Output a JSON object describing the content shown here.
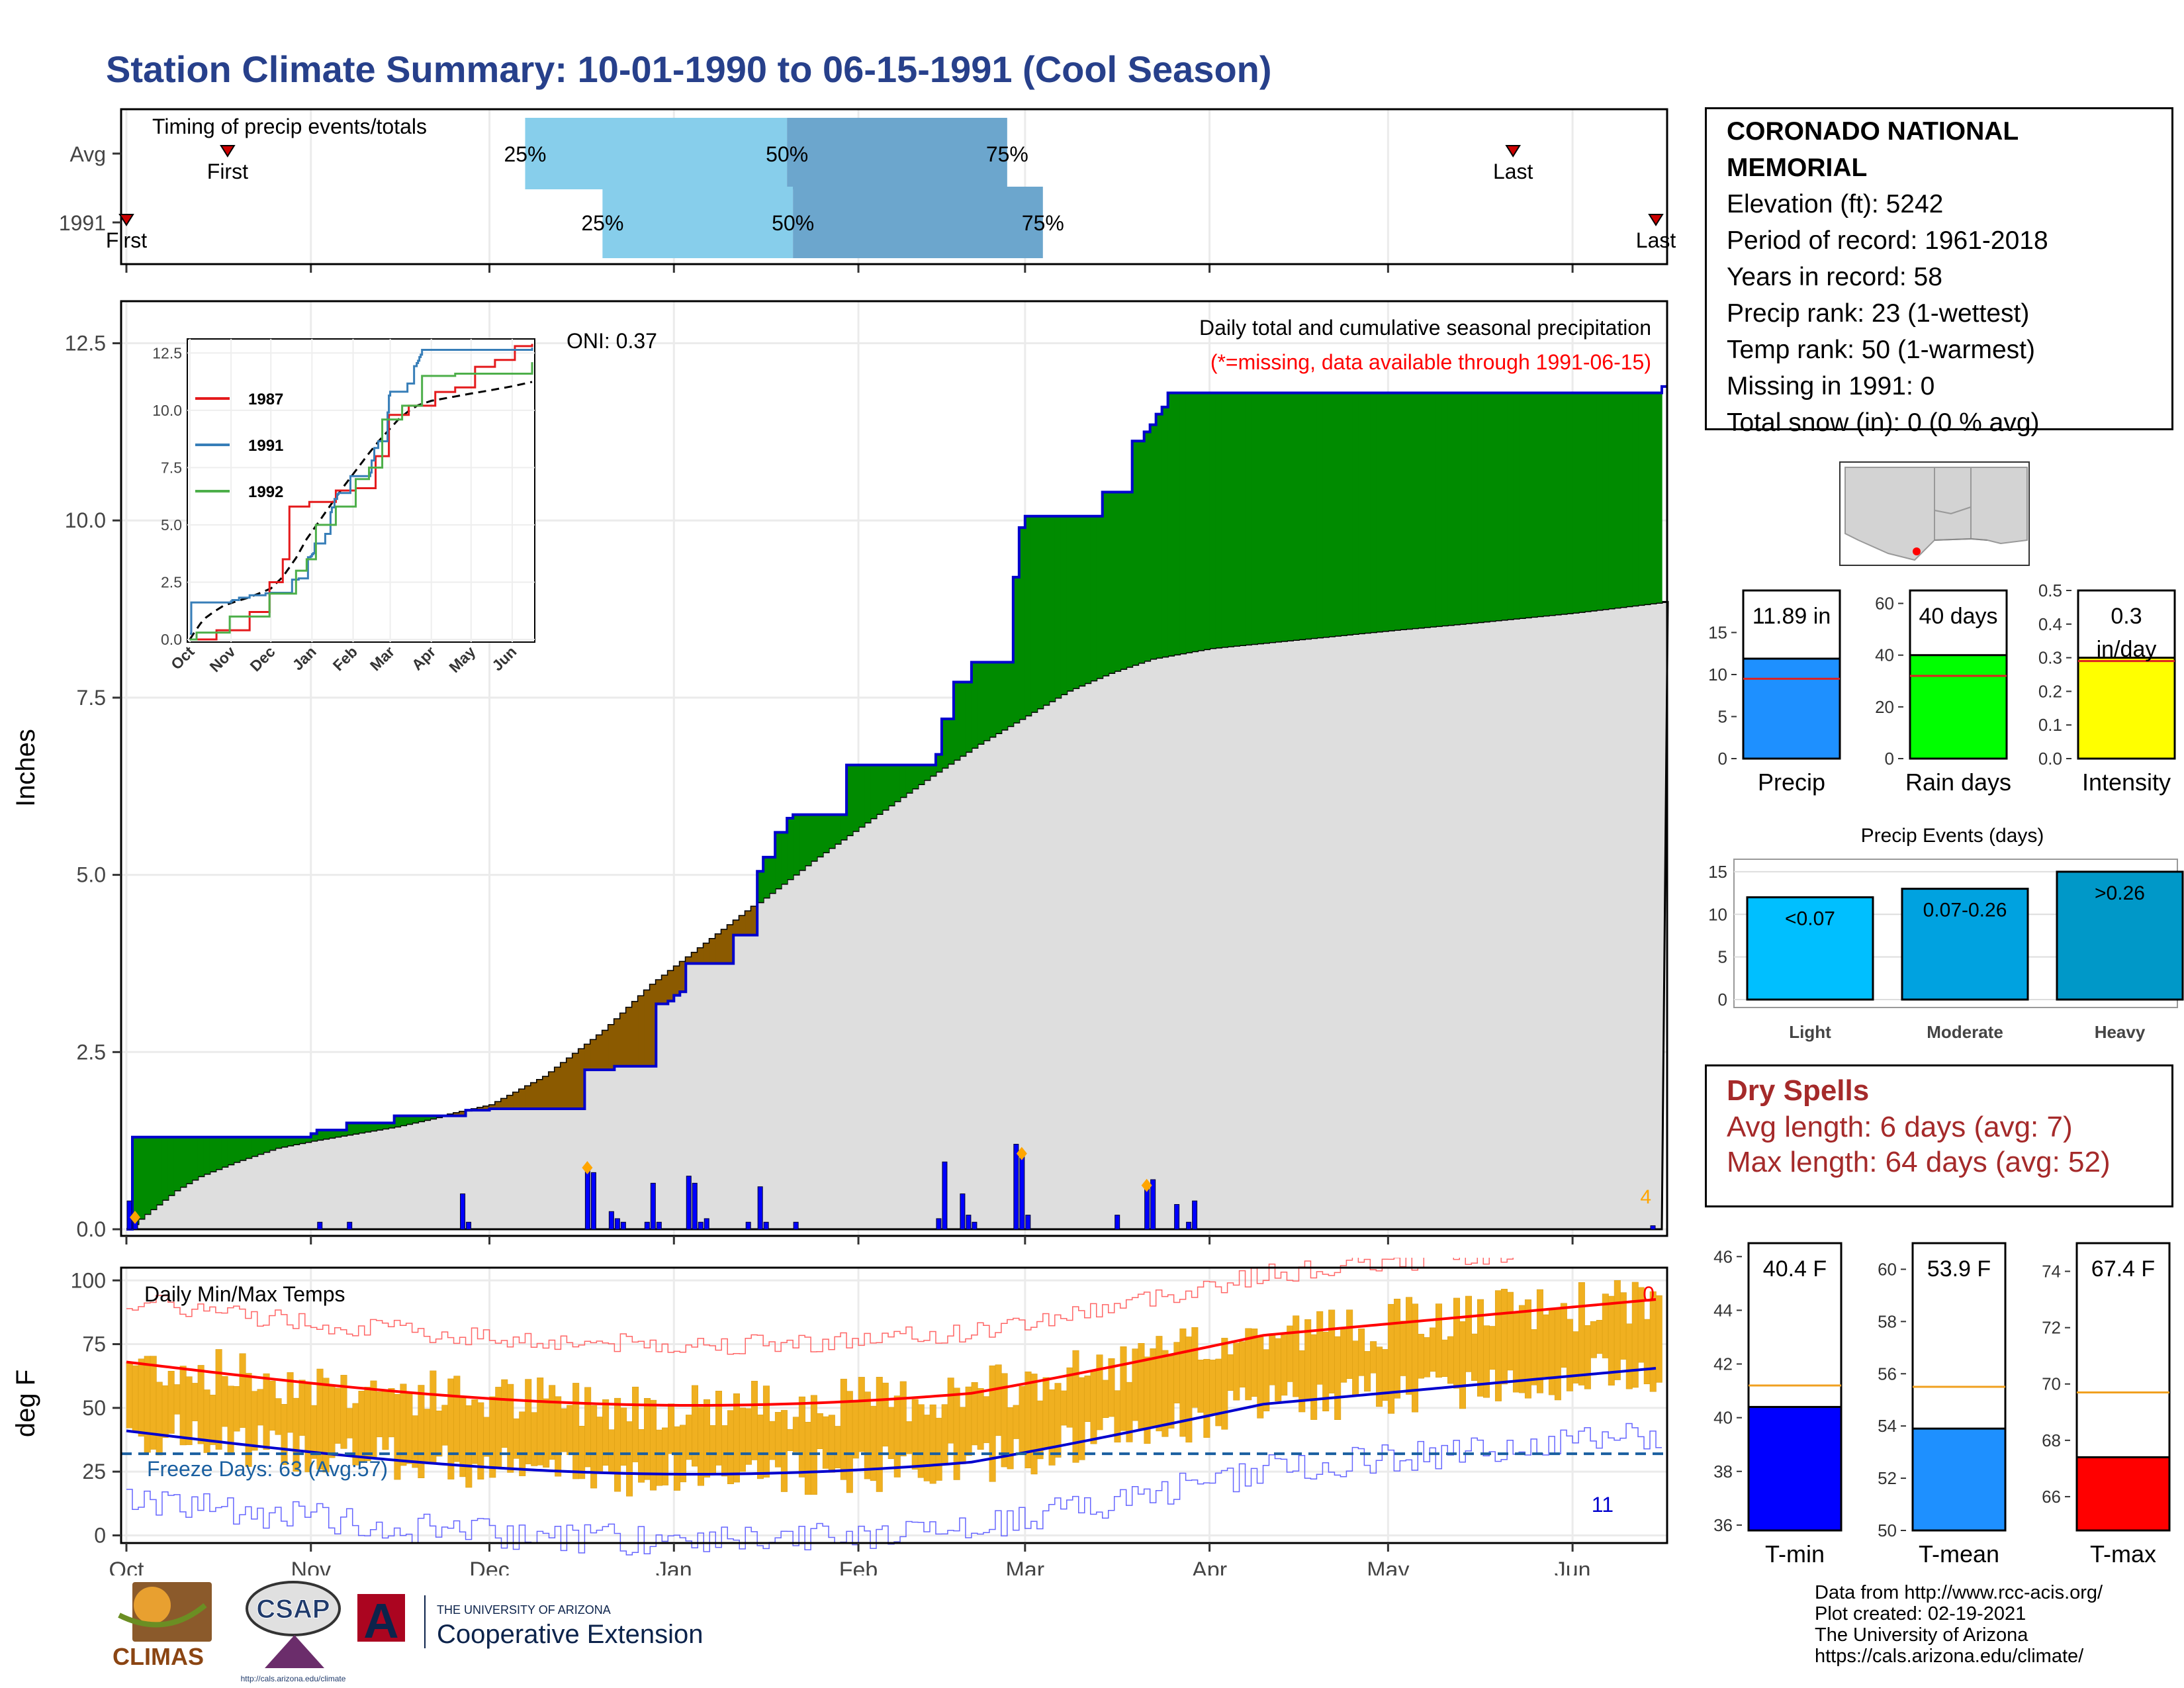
{
  "title": "Station Climate Summary: 10-01-1990 to 06-15-1991 (Cool Season)",
  "colors": {
    "title": "#27408b",
    "cum_obs": "#0000cd",
    "above": "#008b00",
    "below": "#8b5a00",
    "avg_fill": "#dedede",
    "daily_bar": "#0000ff",
    "tmax": "#ff0000",
    "tmin": "#0000cd",
    "range": "#f0b020",
    "freeze": "#1a5fa0",
    "dry": "#a52a2a"
  },
  "station": {
    "name": "CORONADO NATIONAL MEMORIAL",
    "elevation": "Elevation (ft): 5242",
    "period": "Period of record: 1961-2018",
    "years": "Years in record: 58",
    "precip_rank": "Precip rank: 23 (1-wettest)",
    "temp_rank": "Temp rank: 50 (1-warmest)",
    "missing": "Missing in 1991: 0",
    "snow": "Total snow (in): 0 (0 % avg)"
  },
  "dry_spells": {
    "title": "Dry Spells",
    "avg": "Avg length: 6 days (avg: 7)",
    "max": "Max length: 64 days (avg: 52)"
  },
  "credits": [
    "Data from http://www.rcc-acis.org/",
    "Plot created: 02-19-2021",
    "The University of Arizona",
    "https://cals.arizona.edu/climate/"
  ],
  "logos": {
    "climas": "CLIMAS",
    "csap": "CSAP",
    "csap_url": "http://cals.arizona.edu/climate",
    "ua_small": "THE UNIVERSITY OF ARIZONA",
    "ua_big": "Cooperative Extension",
    "ua_mark": "A"
  },
  "map_label": "",
  "chart_data": [
    {
      "type": "timeline",
      "title": "Timing of precip events/totals",
      "rows": [
        {
          "name": "Avg",
          "first": "First",
          "last": "Last",
          "first_day": 17,
          "last_day": 233,
          "p25_day": 67,
          "p50_day": 111,
          "p75_day": 148,
          "labels": [
            "25%",
            "50%",
            "75%"
          ]
        },
        {
          "name": "1991",
          "first": "First",
          "last": "Last",
          "first_day": 0,
          "last_day": 257,
          "p25_day": 80,
          "p50_day": 112,
          "p75_day": 154,
          "labels": [
            "25%",
            "50%",
            "75%"
          ]
        }
      ]
    },
    {
      "type": "area",
      "title": "Daily total and cumulative seasonal precipitation",
      "subtitle": "(*=missing, data available through 1991-06-15)",
      "annotation": "ONI: 0.37",
      "ylabel": "Inches",
      "ylim": [
        0,
        12.5
      ],
      "yticks": [
        0.0,
        2.5,
        5.0,
        7.5,
        10.0,
        12.5
      ],
      "ytick_labels": [
        "0.0",
        "2.5",
        "5.0",
        "7.5",
        "10.0",
        "12.5"
      ],
      "x_ticks": [
        "Oct",
        "Nov",
        "Dec",
        "Jan",
        "Feb",
        "Mar",
        "Apr",
        "May",
        "Jun"
      ],
      "x_tick_days": [
        0,
        31,
        61,
        92,
        123,
        151,
        182,
        212,
        243
      ],
      "corner_count": "4",
      "cumulative_1991": [
        [
          0,
          0
        ],
        [
          1,
          1.3
        ],
        [
          31,
          1.35
        ],
        [
          32,
          1.4
        ],
        [
          36,
          1.4
        ],
        [
          37,
          1.5
        ],
        [
          44,
          1.5
        ],
        [
          45,
          1.6
        ],
        [
          56,
          1.6
        ],
        [
          57,
          1.68
        ],
        [
          60,
          1.68
        ],
        [
          61,
          1.7
        ],
        [
          76,
          1.7
        ],
        [
          77,
          2.25
        ],
        [
          81,
          2.25
        ],
        [
          82,
          2.3
        ],
        [
          88,
          2.3
        ],
        [
          89,
          3.18
        ],
        [
          91,
          3.22
        ],
        [
          92,
          3.3
        ],
        [
          93,
          3.35
        ],
        [
          94,
          3.75
        ],
        [
          101,
          3.75
        ],
        [
          102,
          4.15
        ],
        [
          105,
          4.15
        ],
        [
          106,
          5.05
        ],
        [
          107,
          5.25
        ],
        [
          108,
          5.25
        ],
        [
          109,
          5.6
        ],
        [
          110,
          5.6
        ],
        [
          111,
          5.8
        ],
        [
          112,
          5.85
        ],
        [
          120,
          5.85
        ],
        [
          121,
          6.55
        ],
        [
          135,
          6.55
        ],
        [
          136,
          6.7
        ],
        [
          137,
          7.2
        ],
        [
          139,
          7.72
        ],
        [
          141,
          7.72
        ],
        [
          142,
          8.0
        ],
        [
          148,
          8.0
        ],
        [
          149,
          9.2
        ],
        [
          150,
          9.9
        ],
        [
          151,
          10.06
        ],
        [
          163,
          10.06
        ],
        [
          164,
          10.4
        ],
        [
          168,
          10.4
        ],
        [
          169,
          11.12
        ],
        [
          171,
          11.25
        ],
        [
          172,
          11.35
        ],
        [
          173,
          11.5
        ],
        [
          174,
          11.6
        ],
        [
          175,
          11.8
        ],
        [
          250,
          11.8
        ],
        [
          258,
          11.89
        ]
      ],
      "average_cumulative": [
        [
          0,
          0
        ],
        [
          2,
          0.15
        ],
        [
          5,
          0.35
        ],
        [
          8,
          0.55
        ],
        [
          12,
          0.75
        ],
        [
          18,
          0.95
        ],
        [
          25,
          1.15
        ],
        [
          31,
          1.25
        ],
        [
          45,
          1.45
        ],
        [
          61,
          1.75
        ],
        [
          70,
          2.15
        ],
        [
          80,
          2.8
        ],
        [
          88,
          3.45
        ],
        [
          95,
          3.9
        ],
        [
          105,
          4.55
        ],
        [
          115,
          5.2
        ],
        [
          125,
          5.8
        ],
        [
          135,
          6.4
        ],
        [
          143,
          6.85
        ],
        [
          151,
          7.25
        ],
        [
          158,
          7.6
        ],
        [
          165,
          7.85
        ],
        [
          172,
          8.05
        ],
        [
          182,
          8.2
        ],
        [
          200,
          8.35
        ],
        [
          212,
          8.45
        ],
        [
          225,
          8.55
        ],
        [
          243,
          8.7
        ],
        [
          258,
          8.85
        ]
      ],
      "daily_1991": [
        [
          0,
          0.4
        ],
        [
          1,
          0.15
        ],
        [
          32,
          0.1
        ],
        [
          37,
          0.1
        ],
        [
          56,
          0.5
        ],
        [
          57,
          0.1
        ],
        [
          77,
          0.85
        ],
        [
          78,
          0.8
        ],
        [
          81,
          0.25
        ],
        [
          82,
          0.15
        ],
        [
          83,
          0.1
        ],
        [
          87,
          0.1
        ],
        [
          88,
          0.65
        ],
        [
          89,
          0.1
        ],
        [
          94,
          0.75
        ],
        [
          95,
          0.65
        ],
        [
          96,
          0.1
        ],
        [
          97,
          0.15
        ],
        [
          104,
          0.1
        ],
        [
          106,
          0.6
        ],
        [
          107,
          0.1
        ],
        [
          112,
          0.1
        ],
        [
          136,
          0.15
        ],
        [
          137,
          0.95
        ],
        [
          140,
          0.5
        ],
        [
          141,
          0.2
        ],
        [
          142,
          0.1
        ],
        [
          149,
          1.2
        ],
        [
          150,
          1.05
        ],
        [
          151,
          0.2
        ],
        [
          166,
          0.2
        ],
        [
          171,
          0.6
        ],
        [
          172,
          0.7
        ],
        [
          176,
          0.35
        ],
        [
          178,
          0.1
        ],
        [
          179,
          0.4
        ],
        [
          256,
          0.05
        ]
      ],
      "missing_markers_days": [
        1,
        77,
        150,
        171
      ]
    },
    {
      "type": "inset_line",
      "series": [
        {
          "name": "1987",
          "color": "#e41a1c"
        },
        {
          "name": "1991",
          "color": "#377eb8"
        },
        {
          "name": "1992",
          "color": "#4daf4a"
        }
      ],
      "average": "dashed",
      "ylim": [
        0,
        12.5
      ],
      "yticks": [
        "0.0",
        "2.5",
        "5.0",
        "7.5",
        "10.0",
        "12.5"
      ],
      "x_ticks": [
        "Oct",
        "Nov",
        "Dec",
        "Jan",
        "Feb",
        "Mar",
        "Apr",
        "May",
        "Jun"
      ]
    },
    {
      "type": "bar",
      "xlabel": "Precip",
      "value": 11.89,
      "avg": 9.5,
      "value_label": "11.89 in",
      "ylim": [
        0,
        20
      ],
      "yticks": [
        "0",
        "5",
        "10",
        "15"
      ]
    },
    {
      "type": "bar",
      "xlabel": "Rain days",
      "value": 40,
      "avg": 32,
      "value_label": "40 days",
      "ylim": [
        0,
        65
      ],
      "yticks": [
        "0",
        "20",
        "40",
        "60"
      ]
    },
    {
      "type": "bar",
      "xlabel": "Intensity",
      "value": 0.3,
      "avg": 0.29,
      "value_label": "0.3",
      "value_unit": "in/day",
      "ylim": [
        0,
        0.5
      ],
      "yticks": [
        "0.0",
        "0.1",
        "0.2",
        "0.3",
        "0.4",
        "0.5"
      ]
    },
    {
      "type": "bar",
      "title": "Precip Events (days)",
      "categories": [
        "Light",
        "Moderate",
        "Heavy"
      ],
      "values": [
        12,
        13,
        15
      ],
      "labels": [
        "<0.07",
        "0.07-0.26",
        ">0.26"
      ],
      "ylim": [
        0,
        16
      ],
      "yticks": [
        "0",
        "5",
        "10",
        "15"
      ]
    },
    {
      "type": "line",
      "title": "Daily Min/Max Temps",
      "ylabel": "deg F",
      "ylim": [
        -3,
        105
      ],
      "yticks": [
        "0",
        "25",
        "50",
        "75",
        "100"
      ],
      "x_ticks": [
        "Oct",
        "Nov",
        "Dec",
        "Jan",
        "Feb",
        "Mar",
        "Apr",
        "May",
        "Jun"
      ],
      "freeze_line": 32,
      "freeze_label": "Freeze Days: 63 (Avg:57)",
      "count_top": "0",
      "count_bottom": "11"
    },
    {
      "type": "bar",
      "xlabel": "T-min",
      "value": 40.4,
      "avg": 41.2,
      "value_label": "40.4 F",
      "ylim": [
        35.8,
        46.5
      ],
      "yticks": [
        "36",
        "38",
        "40",
        "42",
        "44",
        "46"
      ]
    },
    {
      "type": "bar",
      "xlabel": "T-mean",
      "value": 53.9,
      "avg": 55.5,
      "value_label": "53.9 F",
      "ylim": [
        50,
        61
      ],
      "yticks": [
        "50",
        "52",
        "54",
        "56",
        "58",
        "60"
      ]
    },
    {
      "type": "bar",
      "xlabel": "T-max",
      "value": 67.4,
      "avg": 69.7,
      "value_label": "67.4 F",
      "ylim": [
        64.8,
        75
      ],
      "yticks": [
        "66",
        "68",
        "70",
        "72",
        "74"
      ]
    }
  ]
}
